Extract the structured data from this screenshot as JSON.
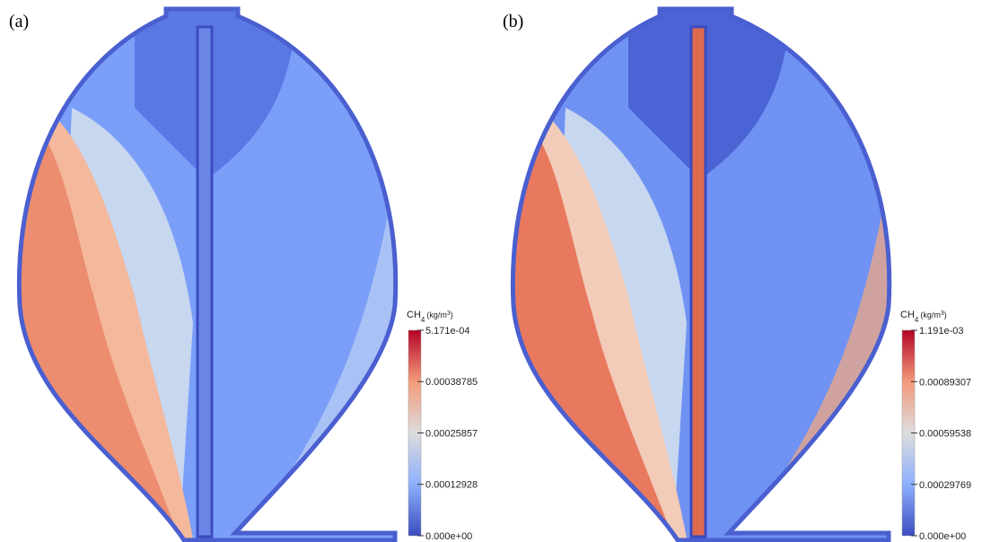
{
  "panels": [
    {
      "label": "(a)",
      "colorbar": {
        "title": {
          "name": "CH",
          "sub": "4",
          "unit_open": "(kg/m",
          "sup": "3",
          "unit_close": ")"
        },
        "range": [
          0,
          0.0005171
        ],
        "ticks": [
          {
            "value": 0.0005171,
            "label": "5.171e-04"
          },
          0.00038785,
          0.00025857,
          0.00012928,
          {
            "value": 0,
            "label": "0.000e+00"
          }
        ]
      }
    },
    {
      "label": "(b)",
      "colorbar": {
        "title": {
          "name": "CH",
          "sub": "4",
          "unit_open": "(kg/m",
          "sup": "3",
          "unit_close": ")"
        },
        "range": [
          0,
          0.001191
        ],
        "ticks": [
          {
            "value": 0.001191,
            "label": "1.191e-03"
          },
          0.00089307,
          0.00059538,
          0.00029769,
          {
            "value": 0,
            "label": "0.000e+00"
          }
        ]
      }
    }
  ]
}
